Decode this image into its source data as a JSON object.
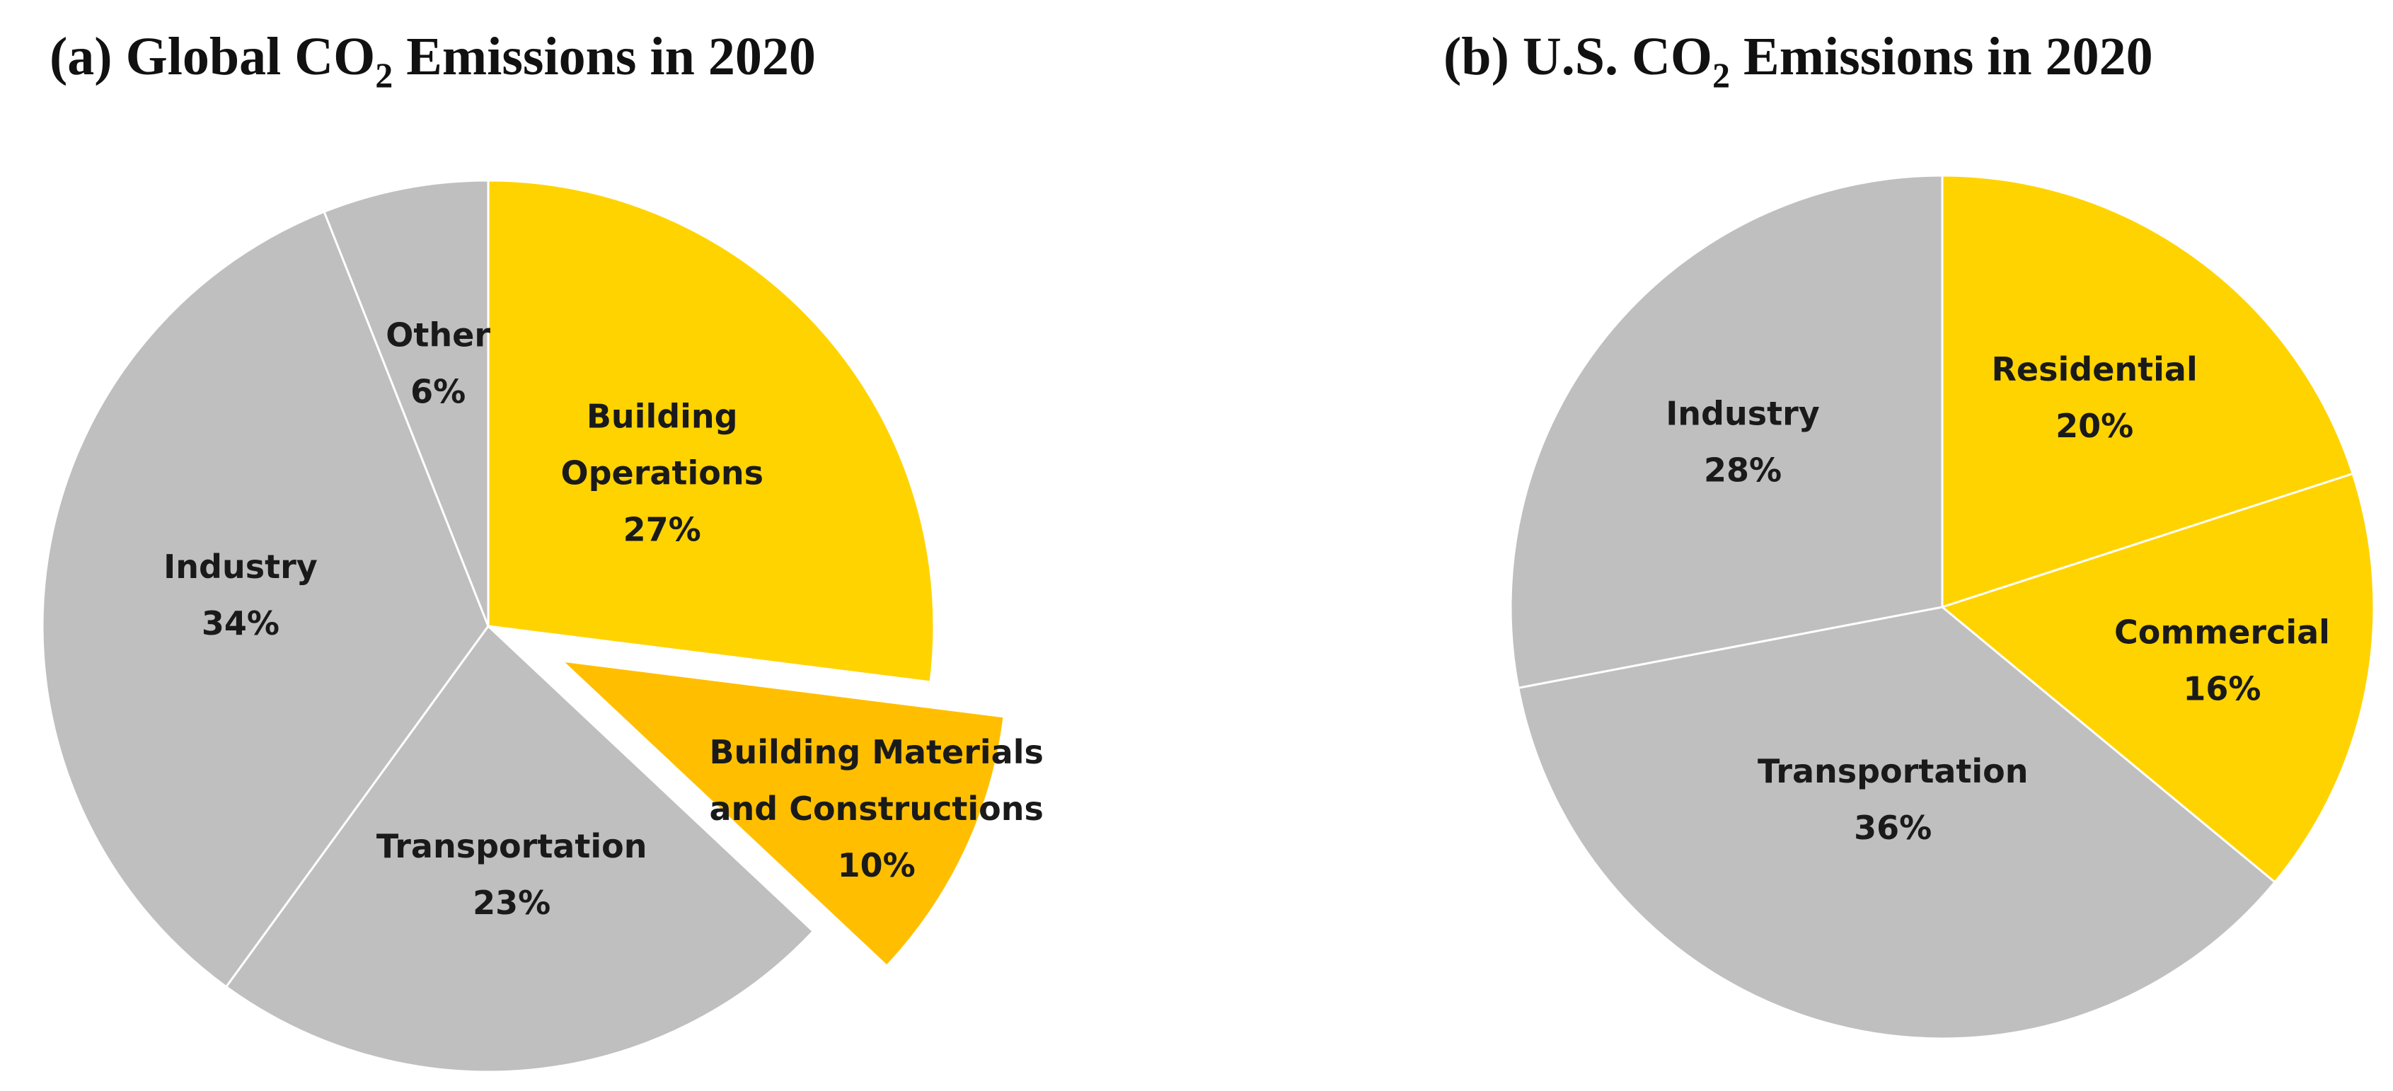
{
  "chart_data": [
    {
      "type": "pie",
      "title_prefix": "(a) Global CO",
      "title_sub": "2",
      "title_suffix": " Emissions in 2020",
      "slices": [
        {
          "lines": [
            "Building",
            "Operations",
            "27%"
          ],
          "value": 27,
          "color": "#FFD300",
          "exploded": false
        },
        {
          "lines": [
            "Building Materials",
            "and Constructions",
            "10%"
          ],
          "value": 10,
          "color": "#FFBF00",
          "exploded": true
        },
        {
          "lines": [
            "Transportation",
            "23%"
          ],
          "value": 23,
          "color": "#BFBFBF",
          "exploded": false
        },
        {
          "lines": [
            "Industry",
            "34%"
          ],
          "value": 34,
          "color": "#BFBFBF",
          "exploded": false
        },
        {
          "lines": [
            "Other",
            "6%"
          ],
          "value": 6,
          "color": "#BFBFBF",
          "exploded": false
        }
      ]
    },
    {
      "type": "pie",
      "title_prefix": "(b) U.S. CO",
      "title_sub": "2",
      "title_suffix": " Emissions in 2020",
      "slices": [
        {
          "lines": [
            "Residential",
            "20%"
          ],
          "value": 20,
          "color": "#FFD300",
          "exploded": false
        },
        {
          "lines": [
            "Commercial",
            "16%"
          ],
          "value": 16,
          "color": "#FFD300",
          "exploded": false
        },
        {
          "lines": [
            "Transportation",
            "36%"
          ],
          "value": 36,
          "color": "#BFBFBF",
          "exploded": false
        },
        {
          "lines": [
            "Industry",
            "28%"
          ],
          "value": 28,
          "color": "#BFBFBF",
          "exploded": false
        }
      ]
    }
  ]
}
